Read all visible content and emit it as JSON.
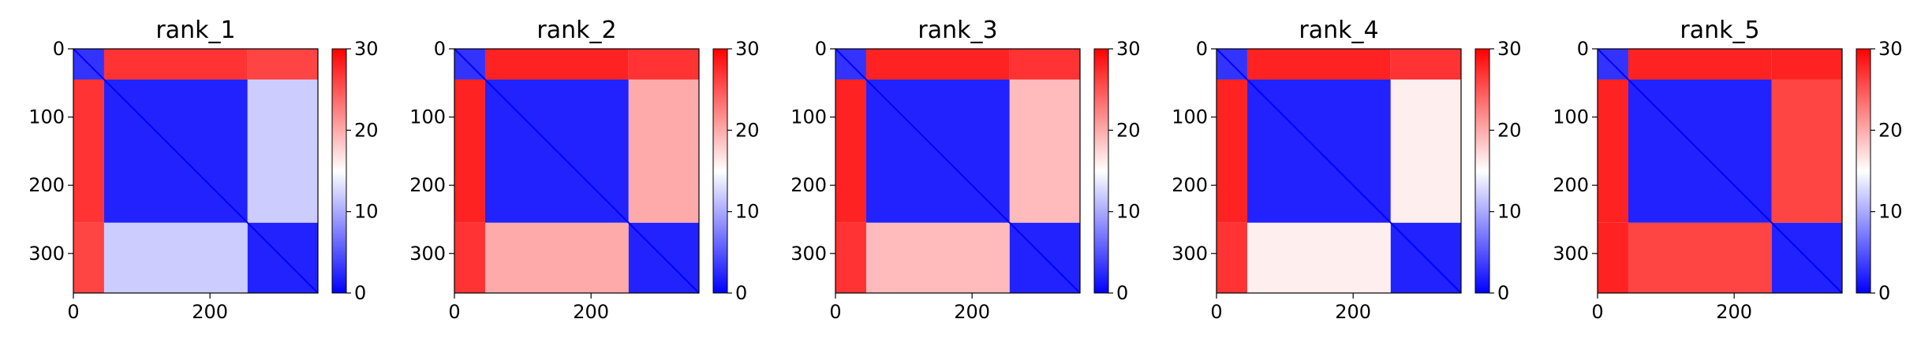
{
  "figure": {
    "colormap": "bwr",
    "colors": {
      "low": "#0000ff",
      "mid": "#ffffff",
      "high": "#ff0000"
    }
  },
  "chart_data": [
    {
      "type": "heatmap",
      "title": "rank_1",
      "extent": [
        0,
        358
      ],
      "zlim": [
        0,
        30
      ],
      "x_ticks": [
        "0",
        "200"
      ],
      "y_ticks": [
        "0",
        "100",
        "200",
        "300"
      ],
      "colorbar_ticks": [
        "0",
        "10",
        "20",
        "30"
      ],
      "blocks": [
        {
          "from": 0,
          "to": 45,
          "value": 3
        },
        {
          "from": 45,
          "to": 255,
          "value": 2
        },
        {
          "from": 255,
          "to": 358,
          "value": 2
        }
      ],
      "inter_block_values": [
        [
          0,
          27,
          26
        ],
        [
          27,
          0,
          12
        ],
        [
          26,
          12,
          0
        ]
      ]
    },
    {
      "type": "heatmap",
      "title": "rank_2",
      "extent": [
        0,
        358
      ],
      "zlim": [
        0,
        30
      ],
      "x_ticks": [
        "0",
        "200"
      ],
      "y_ticks": [
        "0",
        "100",
        "200",
        "300"
      ],
      "colorbar_ticks": [
        "0",
        "10",
        "20",
        "30"
      ],
      "blocks": [
        {
          "from": 0,
          "to": 45,
          "value": 3
        },
        {
          "from": 45,
          "to": 255,
          "value": 2
        },
        {
          "from": 255,
          "to": 358,
          "value": 2
        }
      ],
      "inter_block_values": [
        [
          0,
          28,
          27
        ],
        [
          28,
          0,
          20
        ],
        [
          27,
          20,
          0
        ]
      ]
    },
    {
      "type": "heatmap",
      "title": "rank_3",
      "extent": [
        0,
        358
      ],
      "zlim": [
        0,
        30
      ],
      "x_ticks": [
        "0",
        "200"
      ],
      "y_ticks": [
        "0",
        "100",
        "200",
        "300"
      ],
      "colorbar_ticks": [
        "0",
        "10",
        "20",
        "30"
      ],
      "blocks": [
        {
          "from": 0,
          "to": 45,
          "value": 3
        },
        {
          "from": 45,
          "to": 255,
          "value": 2
        },
        {
          "from": 255,
          "to": 358,
          "value": 2
        }
      ],
      "inter_block_values": [
        [
          0,
          28,
          27
        ],
        [
          28,
          0,
          19
        ],
        [
          27,
          19,
          0
        ]
      ]
    },
    {
      "type": "heatmap",
      "title": "rank_4",
      "extent": [
        0,
        358
      ],
      "zlim": [
        0,
        30
      ],
      "x_ticks": [
        "0",
        "200"
      ],
      "y_ticks": [
        "0",
        "100",
        "200",
        "300"
      ],
      "colorbar_ticks": [
        "0",
        "10",
        "20",
        "30"
      ],
      "blocks": [
        {
          "from": 0,
          "to": 45,
          "value": 3
        },
        {
          "from": 45,
          "to": 255,
          "value": 2
        },
        {
          "from": 255,
          "to": 358,
          "value": 2
        }
      ],
      "inter_block_values": [
        [
          0,
          28,
          27
        ],
        [
          28,
          0,
          16
        ],
        [
          27,
          16,
          0
        ]
      ]
    },
    {
      "type": "heatmap",
      "title": "rank_5",
      "extent": [
        0,
        358
      ],
      "zlim": [
        0,
        30
      ],
      "x_ticks": [
        "0",
        "200"
      ],
      "y_ticks": [
        "0",
        "100",
        "200",
        "300"
      ],
      "colorbar_ticks": [
        "0",
        "10",
        "20",
        "30"
      ],
      "blocks": [
        {
          "from": 0,
          "to": 45,
          "value": 3
        },
        {
          "from": 45,
          "to": 255,
          "value": 2
        },
        {
          "from": 255,
          "to": 358,
          "value": 2
        }
      ],
      "inter_block_values": [
        [
          0,
          28,
          28
        ],
        [
          28,
          0,
          26
        ],
        [
          28,
          26,
          0
        ]
      ]
    }
  ]
}
